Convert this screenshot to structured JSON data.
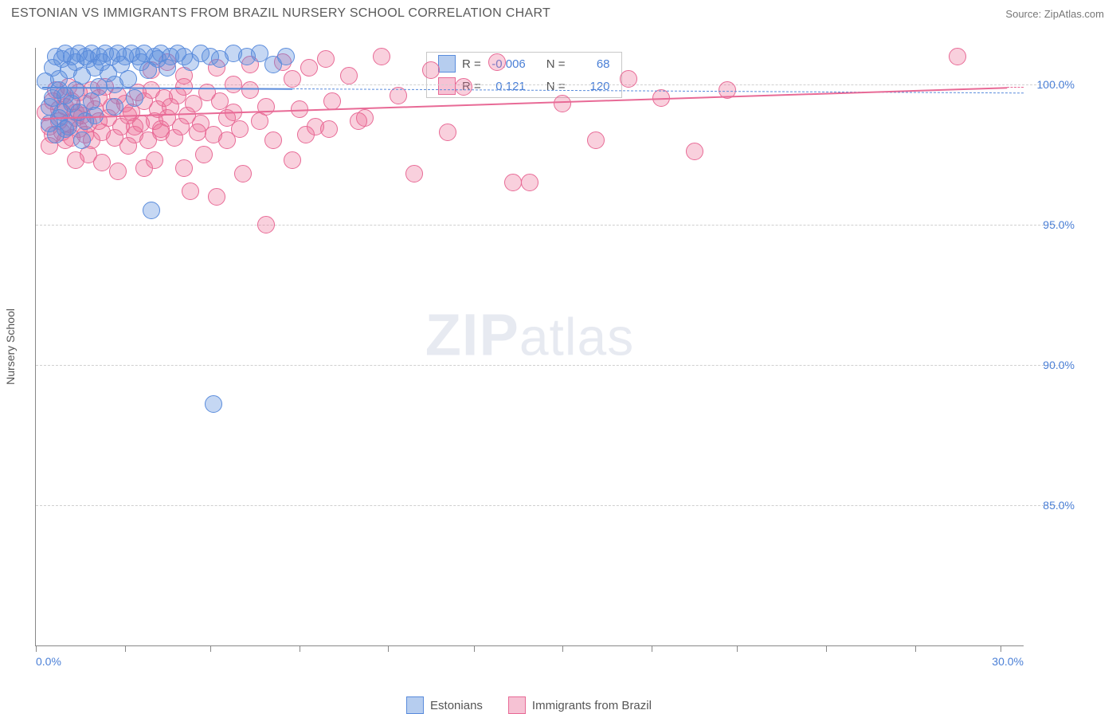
{
  "header": {
    "title": "ESTONIAN VS IMMIGRANTS FROM BRAZIL NURSERY SCHOOL CORRELATION CHART",
    "source_label": "Source:",
    "source_name": "ZipAtlas.com"
  },
  "watermark": {
    "part1": "ZIP",
    "part2": "atlas"
  },
  "chart": {
    "type": "scatter",
    "ylabel": "Nursery School",
    "background_color": "#ffffff",
    "grid_color": "#d0d0d0",
    "axis_color": "#888888",
    "label_color": "#4a7fd6",
    "text_color": "#555555",
    "point_radius": 10,
    "point_opacity": 0.35,
    "xlim": [
      0,
      30
    ],
    "ylim": [
      80,
      101.3
    ],
    "xticks": [
      0,
      2.7,
      5.3,
      8.0,
      10.7,
      13.3,
      16.0,
      18.7,
      21.3,
      24.0,
      26.7,
      29.3
    ],
    "xtick_labels": {
      "0": "0.0%",
      "30": "30.0%"
    },
    "yticks": [
      85,
      90,
      95,
      100
    ],
    "ytick_labels": {
      "85": "85.0%",
      "90": "90.0%",
      "95": "95.0%",
      "100": "100.0%"
    },
    "series": [
      {
        "name": "Estonians",
        "color_fill": "rgba(90,140,220,0.35)",
        "color_stroke": "#5a8cdc",
        "swatch_fill": "#b6cdef",
        "swatch_border": "#5a8cdc",
        "r_label": "R =",
        "r_value": "-0.006",
        "n_label": "N =",
        "n_value": "68",
        "trend": {
          "x1": 0.2,
          "y1": 99.9,
          "x2": 7.8,
          "y2": 99.85,
          "dash_x2": 30,
          "dash_y2": 99.7
        },
        "points": [
          [
            0.3,
            100.1
          ],
          [
            0.4,
            99.2
          ],
          [
            0.5,
            100.6
          ],
          [
            0.5,
            99.5
          ],
          [
            0.6,
            101.0
          ],
          [
            0.7,
            100.2
          ],
          [
            0.7,
            98.8
          ],
          [
            0.8,
            100.9
          ],
          [
            0.8,
            99.0
          ],
          [
            0.9,
            101.1
          ],
          [
            0.9,
            99.6
          ],
          [
            1.0,
            100.5
          ],
          [
            1.0,
            98.5
          ],
          [
            1.1,
            101.0
          ],
          [
            1.1,
            99.3
          ],
          [
            1.2,
            100.8
          ],
          [
            1.2,
            99.8
          ],
          [
            1.3,
            101.1
          ],
          [
            1.3,
            99.0
          ],
          [
            1.4,
            100.3
          ],
          [
            1.5,
            101.0
          ],
          [
            1.5,
            98.7
          ],
          [
            1.6,
            100.9
          ],
          [
            1.7,
            101.1
          ],
          [
            1.7,
            99.4
          ],
          [
            1.8,
            100.6
          ],
          [
            1.9,
            101.0
          ],
          [
            1.9,
            99.9
          ],
          [
            2.0,
            100.8
          ],
          [
            2.1,
            101.1
          ],
          [
            2.2,
            100.4
          ],
          [
            2.3,
            101.0
          ],
          [
            2.4,
            100.0
          ],
          [
            2.5,
            101.1
          ],
          [
            2.6,
            100.7
          ],
          [
            2.7,
            101.0
          ],
          [
            2.8,
            100.2
          ],
          [
            2.9,
            101.1
          ],
          [
            3.0,
            99.5
          ],
          [
            3.1,
            101.0
          ],
          [
            3.2,
            100.8
          ],
          [
            3.3,
            101.1
          ],
          [
            3.4,
            100.5
          ],
          [
            3.6,
            101.0
          ],
          [
            3.7,
            100.9
          ],
          [
            3.8,
            101.1
          ],
          [
            4.0,
            100.6
          ],
          [
            4.1,
            101.0
          ],
          [
            4.3,
            101.1
          ],
          [
            4.5,
            101.0
          ],
          [
            4.7,
            100.8
          ],
          [
            5.0,
            101.1
          ],
          [
            5.3,
            101.0
          ],
          [
            5.6,
            100.9
          ],
          [
            6.0,
            101.1
          ],
          [
            6.4,
            101.0
          ],
          [
            6.8,
            101.1
          ],
          [
            7.2,
            100.7
          ],
          [
            7.6,
            101.0
          ],
          [
            3.5,
            95.5
          ],
          [
            5.4,
            88.6
          ],
          [
            1.4,
            98.0
          ],
          [
            0.6,
            98.2
          ],
          [
            0.9,
            98.4
          ],
          [
            1.8,
            98.9
          ],
          [
            2.4,
            99.2
          ],
          [
            0.4,
            98.6
          ],
          [
            0.7,
            99.8
          ]
        ]
      },
      {
        "name": "Immigrants from Brazil",
        "color_fill": "rgba(235,110,150,0.32)",
        "color_stroke": "#e86a96",
        "swatch_fill": "#f6c2d4",
        "swatch_border": "#e86a96",
        "r_label": "R =",
        "r_value": "0.121",
        "n_label": "N =",
        "n_value": "120",
        "trend": {
          "x1": 0.2,
          "y1": 98.8,
          "x2": 29.5,
          "y2": 99.9,
          "dash_x2": 30,
          "dash_y2": 99.9
        },
        "points": [
          [
            0.3,
            99.0
          ],
          [
            0.4,
            98.5
          ],
          [
            0.5,
            99.4
          ],
          [
            0.5,
            98.2
          ],
          [
            0.6,
            99.8
          ],
          [
            0.7,
            98.7
          ],
          [
            0.7,
            99.1
          ],
          [
            0.8,
            98.3
          ],
          [
            0.8,
            99.6
          ],
          [
            0.9,
            98.0
          ],
          [
            0.9,
            99.2
          ],
          [
            1.0,
            98.6
          ],
          [
            1.0,
            99.9
          ],
          [
            1.1,
            98.1
          ],
          [
            1.1,
            99.4
          ],
          [
            1.2,
            98.8
          ],
          [
            1.2,
            99.0
          ],
          [
            1.3,
            98.4
          ],
          [
            1.3,
            99.7
          ],
          [
            1.4,
            98.9
          ],
          [
            1.5,
            98.2
          ],
          [
            1.5,
            99.3
          ],
          [
            1.6,
            98.6
          ],
          [
            1.7,
            99.8
          ],
          [
            1.7,
            98.0
          ],
          [
            1.8,
            99.1
          ],
          [
            1.9,
            98.7
          ],
          [
            1.9,
            99.5
          ],
          [
            2.0,
            98.3
          ],
          [
            2.1,
            99.9
          ],
          [
            2.2,
            98.8
          ],
          [
            2.3,
            99.2
          ],
          [
            2.4,
            98.1
          ],
          [
            2.5,
            99.6
          ],
          [
            2.6,
            98.5
          ],
          [
            2.7,
            99.3
          ],
          [
            2.8,
            98.9
          ],
          [
            2.9,
            99.0
          ],
          [
            3.0,
            98.2
          ],
          [
            3.1,
            99.7
          ],
          [
            3.2,
            98.6
          ],
          [
            3.3,
            99.4
          ],
          [
            3.4,
            98.0
          ],
          [
            3.5,
            99.8
          ],
          [
            3.6,
            98.7
          ],
          [
            3.7,
            99.1
          ],
          [
            3.8,
            98.3
          ],
          [
            3.9,
            99.5
          ],
          [
            4.0,
            98.8
          ],
          [
            4.1,
            99.2
          ],
          [
            4.2,
            98.1
          ],
          [
            4.3,
            99.6
          ],
          [
            4.4,
            98.5
          ],
          [
            4.5,
            99.9
          ],
          [
            4.6,
            98.9
          ],
          [
            4.8,
            99.3
          ],
          [
            5.0,
            98.6
          ],
          [
            5.2,
            99.7
          ],
          [
            5.4,
            98.2
          ],
          [
            5.6,
            99.4
          ],
          [
            5.8,
            98.8
          ],
          [
            6.0,
            99.0
          ],
          [
            6.2,
            98.4
          ],
          [
            6.5,
            99.8
          ],
          [
            6.8,
            98.7
          ],
          [
            7.0,
            99.2
          ],
          [
            7.2,
            98.0
          ],
          [
            7.5,
            100.8
          ],
          [
            7.8,
            100.2
          ],
          [
            8.0,
            99.1
          ],
          [
            8.3,
            100.6
          ],
          [
            8.5,
            98.5
          ],
          [
            8.8,
            100.9
          ],
          [
            9.0,
            99.4
          ],
          [
            9.5,
            100.3
          ],
          [
            10.0,
            98.8
          ],
          [
            10.5,
            101.0
          ],
          [
            11.0,
            99.6
          ],
          [
            11.5,
            96.8
          ],
          [
            12.0,
            100.5
          ],
          [
            12.5,
            98.3
          ],
          [
            13.0,
            99.9
          ],
          [
            14.0,
            100.8
          ],
          [
            15.0,
            96.5
          ],
          [
            16.0,
            99.3
          ],
          [
            17.0,
            98.0
          ],
          [
            18.0,
            100.2
          ],
          [
            19.0,
            99.5
          ],
          [
            20.0,
            97.6
          ],
          [
            21.0,
            99.8
          ],
          [
            28.0,
            101.0
          ],
          [
            2.5,
            96.9
          ],
          [
            3.3,
            97.0
          ],
          [
            3.6,
            97.3
          ],
          [
            4.5,
            97.0
          ],
          [
            4.7,
            96.2
          ],
          [
            5.5,
            96.0
          ],
          [
            5.1,
            97.5
          ],
          [
            6.3,
            96.8
          ],
          [
            7.0,
            95.0
          ],
          [
            7.8,
            97.3
          ],
          [
            8.2,
            98.2
          ],
          [
            8.9,
            98.4
          ],
          [
            3.8,
            98.4
          ],
          [
            2.0,
            97.2
          ],
          [
            1.2,
            97.3
          ],
          [
            1.6,
            97.5
          ],
          [
            4.9,
            98.3
          ],
          [
            5.8,
            98.0
          ],
          [
            2.8,
            97.8
          ],
          [
            3.0,
            98.5
          ],
          [
            0.4,
            97.8
          ],
          [
            14.5,
            96.5
          ],
          [
            3.5,
            100.5
          ],
          [
            4.0,
            100.8
          ],
          [
            4.5,
            100.3
          ],
          [
            5.5,
            100.6
          ],
          [
            6.0,
            100.0
          ],
          [
            6.5,
            100.7
          ],
          [
            9.8,
            98.7
          ]
        ]
      }
    ]
  }
}
